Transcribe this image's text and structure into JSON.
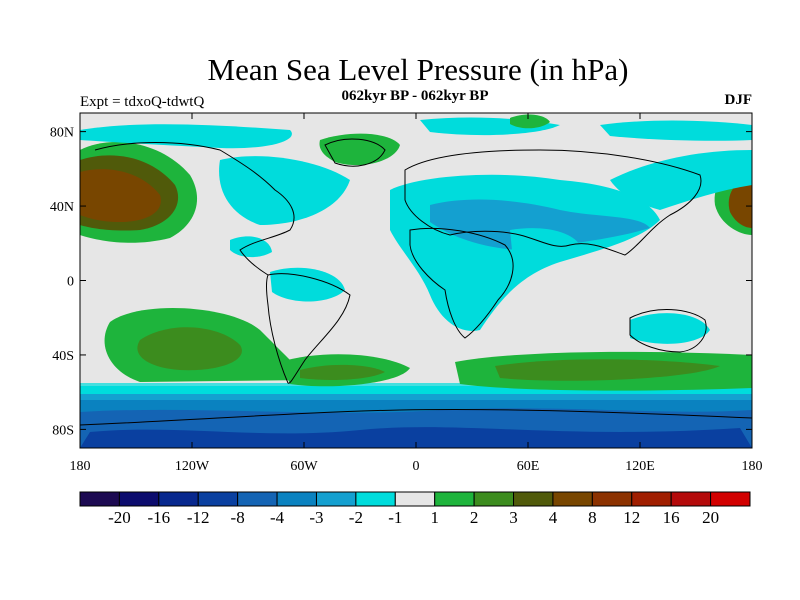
{
  "title": "Mean Sea Level Pressure (in hPa)",
  "subtitle": "062kyr BP - 062kyr BP",
  "experiment": "Expt = tdxoQ-tdwtQ",
  "season": "DJF",
  "map": {
    "projection": "cylindrical-equidistant",
    "lon_range": [
      -180,
      180
    ],
    "lat_range": [
      -90,
      90
    ],
    "lon_ticks": [
      {
        "value": -180,
        "label": "180"
      },
      {
        "value": -120,
        "label": "120W"
      },
      {
        "value": -60,
        "label": "60W"
      },
      {
        "value": 0,
        "label": "0"
      },
      {
        "value": 60,
        "label": "60E"
      },
      {
        "value": 120,
        "label": "120E"
      },
      {
        "value": 180,
        "label": "180"
      }
    ],
    "lat_ticks": [
      {
        "value": 80,
        "label": "80N"
      },
      {
        "value": 40,
        "label": "40N"
      },
      {
        "value": 0,
        "label": "0"
      },
      {
        "value": -40,
        "label": "40S"
      },
      {
        "value": -80,
        "label": "80S"
      }
    ],
    "background_color": "#e6e6e6"
  },
  "colorbar": {
    "colors": [
      "#1d0a52",
      "#0c0c6e",
      "#08288e",
      "#0a40a0",
      "#1464b4",
      "#0a82c0",
      "#14a0d0",
      "#00dcdc",
      "#e6e6e6",
      "#1eb43c",
      "#3c8c1e",
      "#505a0a",
      "#784600",
      "#8c3200",
      "#a01e00",
      "#b40a0a",
      "#d20000"
    ],
    "labels": [
      "-20",
      "-16",
      "-12",
      "-8",
      "-4",
      "-3",
      "-2",
      "-1",
      "1",
      "2",
      "3",
      "4",
      "8",
      "12",
      "16",
      "20"
    ]
  }
}
